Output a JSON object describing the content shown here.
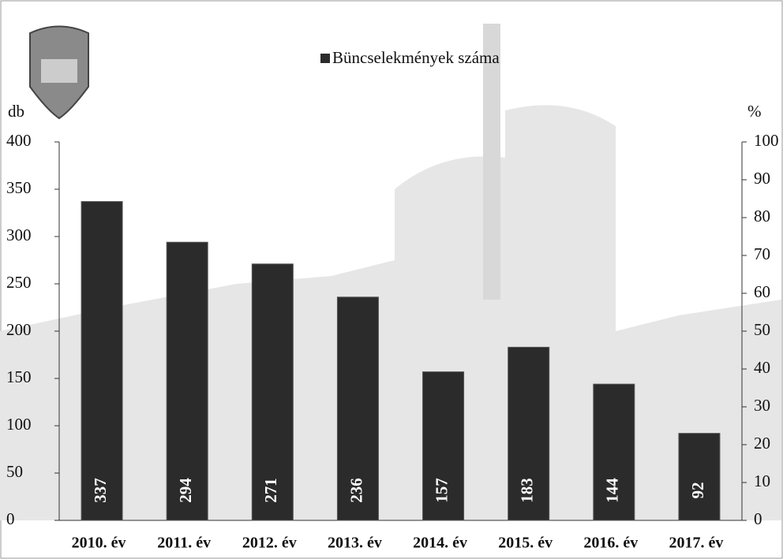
{
  "chart_data": {
    "type": "bar",
    "legend": "Büncselekmények száma",
    "y_label": "db",
    "y2_label": "%",
    "categories": [
      "2010. év",
      "2011. év",
      "2012. év",
      "2013. év",
      "2014. év",
      "2015. év",
      "2016. év",
      "2017. év"
    ],
    "series": [
      {
        "name": "Büncselekmények száma",
        "color": "#2b2b2b",
        "values": [
          337,
          294,
          271,
          236,
          157,
          183,
          144,
          92
        ]
      }
    ],
    "ylim": [
      0,
      400
    ],
    "yticks": [
      0,
      50,
      100,
      150,
      200,
      250,
      300,
      350,
      400
    ],
    "y2lim": [
      0,
      100
    ],
    "y2ticks": [
      0,
      10,
      20,
      30,
      40,
      50,
      60,
      70,
      80,
      90,
      100
    ]
  }
}
